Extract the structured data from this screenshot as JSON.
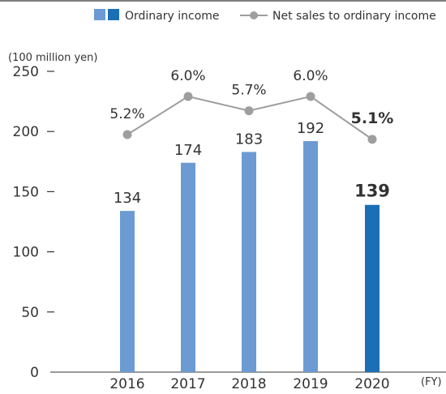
{
  "chart_data": {
    "type": "bar",
    "categories": [
      "2016",
      "2017",
      "2018",
      "2019",
      "2020"
    ],
    "x_unit": "(FY)",
    "y_unit": "(100 million yen)",
    "ylim": [
      0,
      250
    ],
    "y_ticks": [
      "0",
      "50",
      "100",
      "150",
      "200",
      "250"
    ],
    "grid": false,
    "legend_position": "top-right",
    "highlight_category": "2020",
    "series": [
      {
        "name": "Ordinary income",
        "type": "bar",
        "values": [
          134,
          174,
          183,
          192,
          139
        ],
        "labels": [
          "134",
          "174",
          "183",
          "192",
          "139"
        ],
        "color": "#6b9bd2",
        "highlight_color": "#1a6fb5"
      },
      {
        "name": "Net sales to ordinary income",
        "type": "line",
        "values": [
          5.2,
          6.0,
          5.7,
          6.0,
          5.1
        ],
        "labels": [
          "5.2%",
          "6.0%",
          "5.7%",
          "6.0%",
          "5.1%"
        ],
        "color": "#9e9e9e"
      }
    ]
  }
}
